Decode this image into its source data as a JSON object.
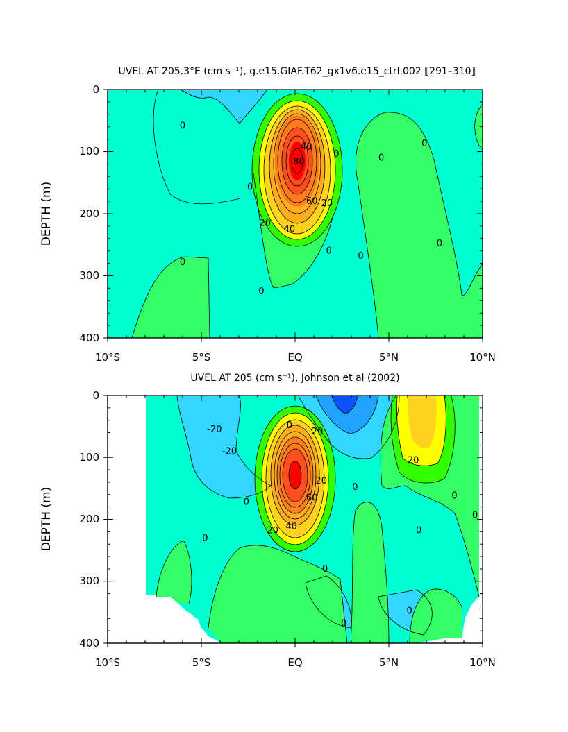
{
  "chart_data": [
    {
      "type": "contour",
      "title": "UVEL AT 205.3°E (cm s⁻¹), g.e15.GIAF.T62_gx1v6.e15_ctrl.002 ⟦291–310⟧",
      "ylabel": "DEPTH (m)",
      "xlim": [
        -10,
        10
      ],
      "ylim": [
        400,
        0
      ],
      "x_tick_labels": [
        "10°S",
        "5°S",
        "EQ",
        "5°N",
        "10°N"
      ],
      "y_tick_labels": [
        "0",
        "100",
        "200",
        "300",
        "400"
      ],
      "contour_labels": [
        {
          "text": "0",
          "x": -6.0,
          "y": 58
        },
        {
          "text": "0",
          "x": 2.2,
          "y": 104
        },
        {
          "text": "0",
          "x": 4.6,
          "y": 110
        },
        {
          "text": "0",
          "x": 6.9,
          "y": 87
        },
        {
          "text": "0",
          "x": -2.4,
          "y": 157
        },
        {
          "text": "0",
          "x": 7.7,
          "y": 248
        },
        {
          "text": "0",
          "x": 1.8,
          "y": 260
        },
        {
          "text": "0",
          "x": 3.5,
          "y": 268
        },
        {
          "text": "0",
          "x": -6.0,
          "y": 278
        },
        {
          "text": "0",
          "x": -1.8,
          "y": 325
        },
        {
          "text": "20",
          "x": 1.7,
          "y": 183
        },
        {
          "text": "20",
          "x": -1.6,
          "y": 215
        },
        {
          "text": "40",
          "x": 0.6,
          "y": 92
        },
        {
          "text": "40",
          "x": -0.3,
          "y": 225
        },
        {
          "text": "60",
          "x": 0.9,
          "y": 180
        },
        {
          "text": "80",
          "x": 0.2,
          "y": 116
        }
      ],
      "jet_core": {
        "lon": 0.0,
        "depth": 130,
        "max_cm_s": 90
      },
      "colors": [
        "#0a52ff",
        "#21a2ff",
        "#32d7ff",
        "#00ffd0",
        "#33ff66",
        "#32ff00",
        "#ffff00",
        "#ffd21e",
        "#ffad1e",
        "#ff7d1e",
        "#ff4f1e",
        "#ff0000"
      ]
    },
    {
      "type": "contour",
      "title": "UVEL AT 205 (cm s⁻¹), Johnson et al (2002)",
      "ylabel": "DEPTH (m)",
      "xlim": [
        -10,
        10
      ],
      "ylim": [
        400,
        0
      ],
      "x_tick_labels": [
        "10°S",
        "5°S",
        "EQ",
        "5°N",
        "10°N"
      ],
      "y_tick_labels": [
        "0",
        "100",
        "200",
        "300",
        "400"
      ],
      "contour_labels": [
        {
          "text": "-20",
          "x": -4.3,
          "y": 55
        },
        {
          "text": "-20",
          "x": -3.5,
          "y": 90
        },
        {
          "text": "-20",
          "x": 1.1,
          "y": 58
        },
        {
          "text": "20",
          "x": 1.4,
          "y": 138
        },
        {
          "text": "20",
          "x": -1.2,
          "y": 218
        },
        {
          "text": "20",
          "x": 6.3,
          "y": 105
        },
        {
          "text": "40",
          "x": -0.2,
          "y": 212
        },
        {
          "text": "60",
          "x": 0.9,
          "y": 165
        },
        {
          "text": "0",
          "x": -0.3,
          "y": 48
        },
        {
          "text": "0",
          "x": -2.6,
          "y": 172
        },
        {
          "text": "0",
          "x": 3.2,
          "y": 148
        },
        {
          "text": "0",
          "x": -4.8,
          "y": 230
        },
        {
          "text": "0",
          "x": 1.6,
          "y": 280
        },
        {
          "text": "0",
          "x": 6.6,
          "y": 218
        },
        {
          "text": "0",
          "x": 8.5,
          "y": 162
        },
        {
          "text": "0",
          "x": 9.6,
          "y": 193
        },
        {
          "text": "0",
          "x": 6.1,
          "y": 348
        },
        {
          "text": "0",
          "x": 2.6,
          "y": 368
        }
      ],
      "jet_core": {
        "lon": 0.0,
        "depth": 130,
        "max_cm_s": 80
      },
      "data_start_lon": -8.3,
      "colors": [
        "#0a52ff",
        "#21a2ff",
        "#32d7ff",
        "#00ffd0",
        "#33ff66",
        "#32ff00",
        "#ffff00",
        "#ffd21e",
        "#ffad1e",
        "#ff7d1e",
        "#ff4f1e",
        "#ff0000"
      ]
    }
  ]
}
